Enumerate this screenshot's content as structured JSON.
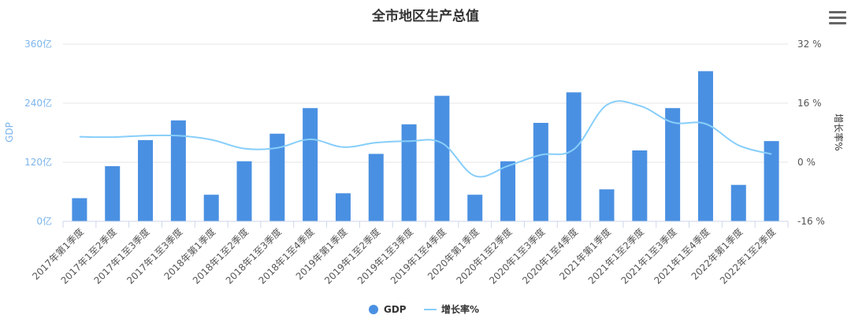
{
  "chart_data": {
    "type": "bar",
    "title": "全市地区生产总值",
    "categories": [
      "2017年第1季度",
      "2017年1至2季度",
      "2017年1至3季度",
      "2017年1至3季度",
      "2018年第1季度",
      "2018年1至2季度",
      "2018年1至3季度",
      "2018年1至4季度",
      "2019年第1季度",
      "2019年1至2季度",
      "2019年1至3季度",
      "2019年1至4季度",
      "2020年第1季度",
      "2020年1至2季度",
      "2020年1至3季度",
      "2020年1至4季度",
      "2021年第1季度",
      "2021年1至2季度",
      "2021年1至3季度",
      "2021年1至4季度",
      "2022年第1季度",
      "2022年1至2季度"
    ],
    "series": [
      {
        "name": "GDP",
        "type": "bar",
        "axis": "left",
        "color": "#4a90e2",
        "values": [
          47,
          112,
          165,
          205,
          54,
          122,
          178,
          230,
          57,
          137,
          197,
          255,
          54,
          122,
          200,
          262,
          65,
          144,
          230,
          305,
          74,
          163
        ]
      },
      {
        "name": "增长率%",
        "type": "line",
        "axis": "right",
        "color": "#87cefa",
        "values": [
          6.9,
          6.8,
          7.2,
          7.2,
          6.1,
          3.7,
          3.9,
          6.2,
          4.1,
          5.3,
          5.7,
          5.2,
          -3.7,
          -1.0,
          2.0,
          3.5,
          15.5,
          15.3,
          10.8,
          10.4,
          4.6,
          2.2
        ]
      }
    ],
    "y_left": {
      "title": "GDP",
      "range": [
        0,
        360
      ],
      "ticks": [
        0,
        120,
        240,
        360
      ],
      "tick_labels": [
        "0亿",
        "120亿",
        "240亿",
        "360亿"
      ]
    },
    "y_right": {
      "title": "增长率%",
      "range": [
        -16,
        32
      ],
      "ticks": [
        -16,
        0,
        16,
        32
      ],
      "tick_labels": [
        "-16 %",
        "0 %",
        "16 %",
        "32 %"
      ]
    },
    "grid": true,
    "legend": {
      "position": "bottom-center",
      "items": [
        {
          "label": "GDP",
          "color": "#4a90e2",
          "symbol": "circle"
        },
        {
          "label": "增长率%",
          "color": "#87cefa",
          "symbol": "line"
        }
      ]
    }
  },
  "toolbar": {
    "menu_icon": "hamburger-menu-icon"
  }
}
